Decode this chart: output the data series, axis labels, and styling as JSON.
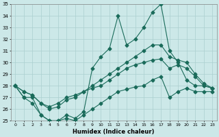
{
  "xlabel": "Humidex (Indice chaleur)",
  "ylabel": "",
  "background_color": "#cce8e8",
  "grid_color": "#aacfcf",
  "line_color": "#1a6b5a",
  "x_values": [
    0,
    1,
    2,
    3,
    4,
    5,
    6,
    7,
    8,
    9,
    10,
    11,
    12,
    13,
    14,
    15,
    16,
    17,
    18,
    19,
    20,
    21,
    22,
    23
  ],
  "series_high": [
    28,
    27,
    27,
    25.5,
    25.0,
    25.0,
    25.5,
    25.2,
    25.8,
    29.5,
    30.5,
    31.2,
    34.0,
    31.5,
    32.0,
    33.0,
    34.3,
    35.0,
    31.0,
    30.0,
    28.5,
    28.0,
    28.0,
    27.8
  ],
  "series_mid1": [
    28,
    27.5,
    27.2,
    26.5,
    26.0,
    26.2,
    26.8,
    27.0,
    27.5,
    28.0,
    28.5,
    29.0,
    29.5,
    30.0,
    30.5,
    31.0,
    31.5,
    31.5,
    30.5,
    30.2,
    30.0,
    29.0,
    28.2,
    27.8
  ],
  "series_mid2": [
    28,
    27.5,
    27.2,
    26.5,
    26.2,
    26.5,
    27.0,
    27.2,
    27.5,
    27.8,
    28.0,
    28.5,
    29.0,
    29.5,
    29.8,
    30.0,
    30.2,
    30.3,
    29.5,
    29.8,
    29.5,
    28.8,
    28.0,
    27.8
  ],
  "series_low": [
    28,
    27.0,
    26.5,
    25.5,
    25.0,
    25.0,
    25.2,
    25.0,
    25.5,
    26.0,
    26.5,
    27.0,
    27.5,
    27.7,
    27.9,
    28.0,
    28.5,
    28.8,
    27.0,
    27.5,
    27.8,
    27.5,
    27.5,
    27.5
  ],
  "ylim": [
    25,
    35
  ],
  "xlim": [
    -0.5,
    23.5
  ],
  "yticks": [
    25,
    26,
    27,
    28,
    29,
    30,
    31,
    32,
    33,
    34,
    35
  ],
  "xticks": [
    0,
    1,
    2,
    3,
    4,
    5,
    6,
    7,
    8,
    9,
    10,
    11,
    12,
    13,
    14,
    15,
    16,
    17,
    18,
    19,
    20,
    21,
    22,
    23
  ]
}
